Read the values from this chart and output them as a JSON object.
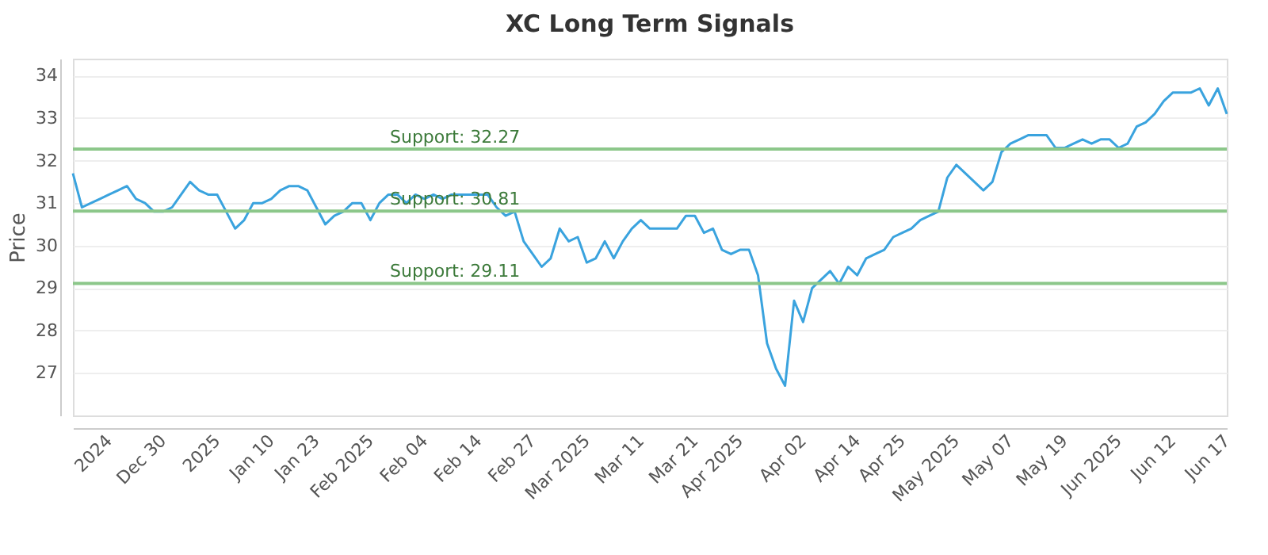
{
  "chart_data": {
    "type": "line",
    "title": "XC Long Term Signals",
    "ylabel": "Price",
    "series": [
      {
        "color": "#3aa3de",
        "values": [
          31.7,
          30.9,
          31.0,
          31.1,
          31.2,
          31.3,
          31.4,
          31.1,
          31.0,
          30.8,
          30.8,
          30.9,
          31.2,
          31.5,
          31.3,
          31.2,
          31.2,
          30.8,
          30.4,
          30.6,
          31.0,
          31.0,
          31.1,
          31.3,
          31.4,
          31.4,
          31.3,
          30.9,
          30.5,
          30.7,
          30.8,
          31.0,
          31.0,
          30.6,
          31.0,
          31.2,
          31.2,
          31.0,
          31.2,
          31.1,
          31.2,
          31.1,
          31.2,
          31.2,
          31.2,
          31.2,
          31.2,
          30.9,
          30.7,
          30.8,
          30.1,
          29.8,
          29.5,
          29.7,
          30.4,
          30.1,
          30.2,
          29.6,
          29.7,
          30.1,
          29.7,
          30.1,
          30.4,
          30.6,
          30.4,
          30.4,
          30.4,
          30.4,
          30.7,
          30.7,
          30.3,
          30.4,
          29.9,
          29.8,
          29.9,
          29.9,
          29.3,
          27.7,
          27.1,
          26.7,
          28.7,
          28.2,
          29.0,
          29.2,
          29.4,
          29.1,
          29.5,
          29.3,
          29.7,
          29.8,
          29.9,
          30.2,
          30.3,
          30.4,
          30.6,
          30.7,
          30.8,
          31.6,
          31.9,
          31.7,
          31.5,
          31.3,
          31.5,
          32.2,
          32.4,
          32.5,
          32.6,
          32.6,
          32.6,
          32.3,
          32.3,
          32.4,
          32.5,
          32.4,
          32.5,
          32.5,
          32.3,
          32.4,
          32.8,
          32.9,
          33.1,
          33.4,
          33.6,
          33.6,
          33.6,
          33.7,
          33.3,
          33.7,
          33.1
        ]
      }
    ],
    "categories": [
      null,
      null,
      null,
      null,
      "2024",
      null,
      null,
      null,
      null,
      null,
      "Dec 30",
      null,
      null,
      null,
      null,
      null,
      "2025",
      null,
      null,
      null,
      null,
      null,
      "Jan 10",
      null,
      null,
      null,
      null,
      "Jan 23",
      null,
      null,
      null,
      null,
      null,
      "Feb 2025",
      null,
      null,
      null,
      null,
      null,
      "Feb 04",
      null,
      null,
      null,
      null,
      null,
      "Feb 14",
      null,
      null,
      null,
      null,
      null,
      "Feb 27",
      null,
      null,
      null,
      null,
      null,
      "Mar 2025",
      null,
      null,
      null,
      null,
      null,
      "Mar 11",
      null,
      null,
      null,
      null,
      null,
      "Mar 21",
      null,
      null,
      null,
      null,
      "Apr 2025",
      null,
      null,
      null,
      null,
      null,
      null,
      "Apr 02",
      null,
      null,
      null,
      null,
      null,
      "Apr 14",
      null,
      null,
      null,
      null,
      "Apr 25",
      null,
      null,
      null,
      null,
      null,
      "May 2025",
      null,
      null,
      null,
      null,
      null,
      "May 07",
      null,
      null,
      null,
      null,
      null,
      "May 19",
      null,
      null,
      null,
      null,
      null,
      "Jun 2025",
      null,
      null,
      null,
      null,
      null,
      "Jun 12",
      null,
      null,
      null,
      null,
      null,
      "Jun 17"
    ],
    "ylim": [
      26,
      34.4
    ],
    "yticks": [
      27,
      28,
      29,
      30,
      31,
      32,
      33,
      34
    ],
    "grid": "y",
    "ref_lines": [
      {
        "axis": "y",
        "value": 32.27,
        "label": "Support: 32.27",
        "color": "#8cc78a"
      },
      {
        "axis": "y",
        "value": 30.81,
        "label": "Support: 30.81",
        "color": "#8cc78a"
      },
      {
        "axis": "y",
        "value": 29.11,
        "label": "Support: 29.11",
        "color": "#8cc78a"
      }
    ],
    "line_style": "solid",
    "marker": "none"
  }
}
